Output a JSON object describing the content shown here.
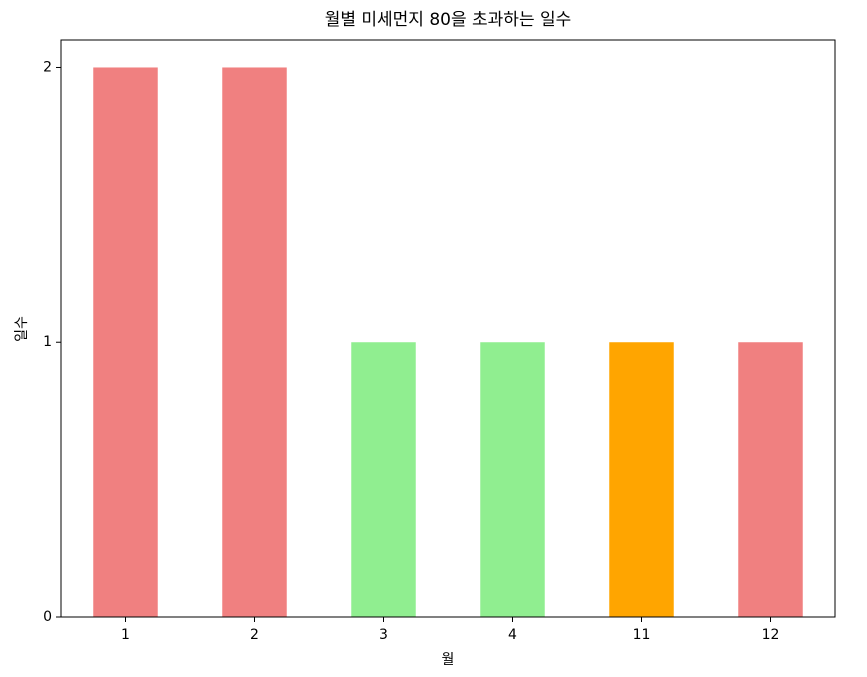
{
  "chart_data": {
    "type": "bar",
    "title": "월별 미세먼지 80을 초과하는 일수",
    "x_label": "월",
    "y_label": "일수",
    "categories": [
      "1",
      "2",
      "3",
      "4",
      "11",
      "12"
    ],
    "values": [
      2,
      2,
      1,
      1,
      1,
      1
    ],
    "colors": [
      "#f08080",
      "#f08080",
      "#90ee90",
      "#90ee90",
      "#ffa500",
      "#f08080"
    ],
    "ylim": [
      0,
      2.1
    ],
    "yticks": [
      0,
      1,
      2
    ],
    "grid": false
  }
}
